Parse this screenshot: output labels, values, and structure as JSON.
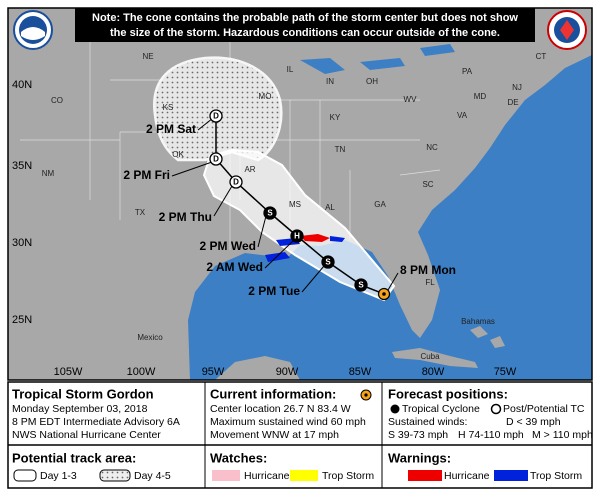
{
  "note": [
    "Note: The cone contains the probable path of the storm center but does not show",
    "the size of the storm. Hazardous conditions can occur outside of the cone."
  ],
  "map": {
    "lat_labels": [
      "40N",
      "35N",
      "30N",
      "25N"
    ],
    "lon_labels": [
      "105W",
      "100W",
      "95W",
      "90W",
      "85W",
      "80W",
      "75W"
    ],
    "places": [
      "NE",
      "IL",
      "IN",
      "OH",
      "PA",
      "CT",
      "NJ",
      "DE",
      "MD",
      "WV",
      "VA",
      "KY",
      "MO",
      "KS",
      "CO",
      "NM",
      "OK",
      "AR",
      "TN",
      "NC",
      "SC",
      "GA",
      "AL",
      "MS",
      "TX",
      "FL",
      "Mexico",
      "Cuba",
      "Bahamas"
    ],
    "track_labels": [
      "8 PM Mon",
      "2 PM Tue",
      "2 AM Wed",
      "2 PM Wed",
      "2 PM Thu",
      "2 PM Fri",
      "2 PM Sat"
    ],
    "points": [
      "S",
      "S",
      "H",
      "S",
      "D",
      "D",
      "D"
    ]
  },
  "storm": {
    "title": "Tropical Storm Gordon",
    "lines": [
      "Monday September 03, 2018",
      "8 PM EDT Intermediate Advisory 6A",
      "NWS National Hurricane Center"
    ]
  },
  "current": {
    "title": "Current information:",
    "lines": [
      "Center location 26.7 N 83.4 W",
      "Maximum sustained wind 60 mph",
      "Movement WNW at 17 mph"
    ]
  },
  "forecast": {
    "title": "Forecast positions:",
    "tropical": "Tropical Cyclone",
    "post": "Post/Potential TC",
    "winds": "Sustained winds:",
    "d": "D < 39 mph",
    "s": "S 39-73 mph",
    "h": "H 74-110 mph",
    "m": "M > 110 mph"
  },
  "track_area": {
    "title": "Potential track area:",
    "day13": "Day 1-3",
    "day45": "Day 4-5"
  },
  "watches": {
    "title": "Watches:",
    "hurricane": "Hurricane",
    "storm": "Trop Storm"
  },
  "warnings": {
    "title": "Warnings:",
    "hurricane": "Hurricane",
    "storm": "Trop Storm"
  }
}
